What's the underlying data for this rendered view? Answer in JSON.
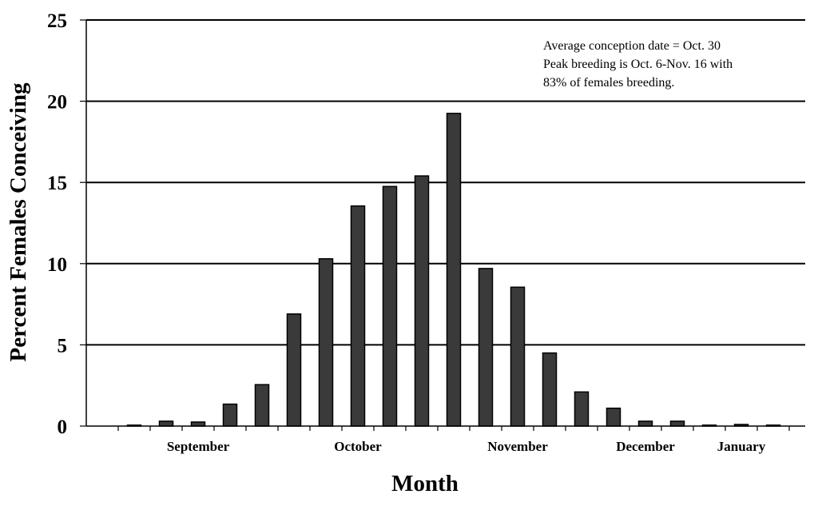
{
  "chart_data": {
    "type": "bar",
    "ylabel": "Percent Females Conceiving",
    "xlabel": "Month",
    "ylim": [
      0,
      25
    ],
    "yticks": [
      0,
      5,
      10,
      15,
      20,
      25
    ],
    "grid": true,
    "bar_color": "#3a3a3a",
    "month_labels": [
      {
        "label": "September",
        "center_slot": 2.5
      },
      {
        "label": "October",
        "center_slot": 7.5
      },
      {
        "label": "November",
        "center_slot": 12.5
      },
      {
        "label": "December",
        "center_slot": 16.5
      },
      {
        "label": "January",
        "center_slot": 19.5
      }
    ],
    "values": [
      0.05,
      0.3,
      0.25,
      1.35,
      2.55,
      6.9,
      10.3,
      13.55,
      14.75,
      15.4,
      19.25,
      9.7,
      8.55,
      4.5,
      2.1,
      1.1,
      0.3,
      0.3,
      0.05,
      0.1,
      0.05
    ],
    "annotation": [
      "Average conception date = Oct. 30",
      "Peak breeding is Oct. 6-Nov. 16 with",
      "83% of females breeding."
    ]
  }
}
